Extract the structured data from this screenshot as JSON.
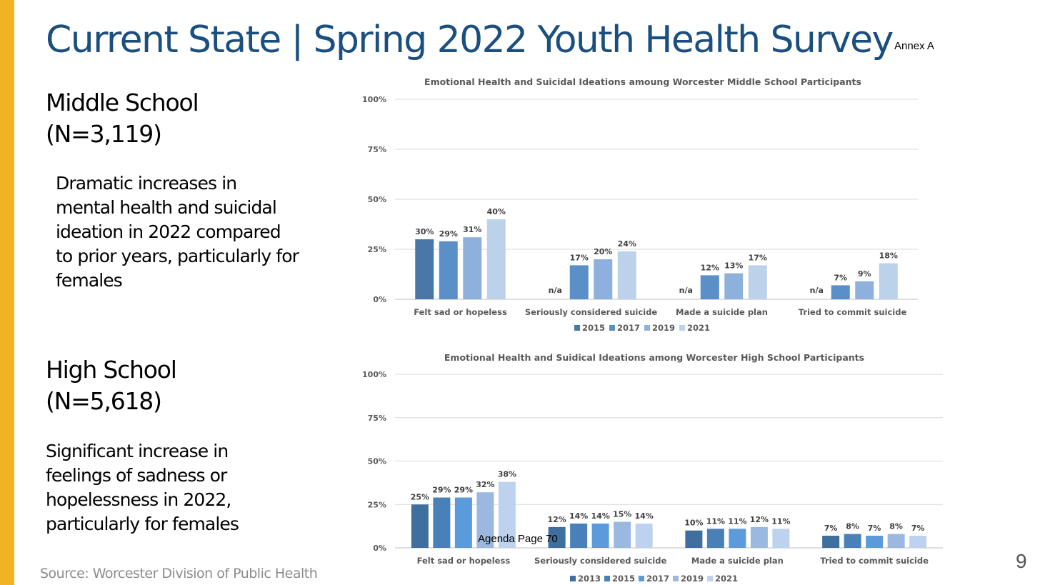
{
  "slide": {
    "title": "Current State | Spring 2022 Youth Health Survey",
    "annex": "Annex A",
    "source": "Source: Worcester Division of Public Health",
    "page_number": "9",
    "agenda_note": "Agenda Page 70",
    "accent_color": "#f0b323",
    "title_color": "#1a4f7f"
  },
  "middle_school": {
    "heading_line1": "Middle School",
    "heading_line2": "(N=3,119)",
    "text": "Dramatic increases in mental health and suicidal ideation in 2022 compared to  prior years, particularly for females"
  },
  "high_school": {
    "heading_line1": "High School",
    "heading_line2": "(N=5,618)",
    "text": "Significant increase in feelings of sadness or hopelessness in 2022, particularly for females"
  },
  "chart_data": [
    {
      "type": "bar",
      "title": "Emotional Health and Suicidal Ideations amoung Worcester Middle School Participants",
      "categories": [
        "Felt sad or hopeless",
        "Seriously considered suicide",
        "Made a suicide plan",
        "Tried to commit suicide"
      ],
      "series": [
        {
          "name": "2015",
          "color": "#4a77a8",
          "values": [
            30,
            null,
            null,
            null
          ],
          "labels": [
            "30%",
            "n/a",
            "n/a",
            "n/a"
          ]
        },
        {
          "name": "2017",
          "color": "#5b8fc8",
          "values": [
            29,
            17,
            12,
            7
          ],
          "labels": [
            "29%",
            "17%",
            "12%",
            "7%"
          ]
        },
        {
          "name": "2019",
          "color": "#8db1dc",
          "values": [
            31,
            20,
            13,
            9
          ],
          "labels": [
            "31%",
            "20%",
            "13%",
            "9%"
          ]
        },
        {
          "name": "2021",
          "color": "#bcd1ea",
          "values": [
            40,
            24,
            17,
            18
          ],
          "labels": [
            "40%",
            "24%",
            "17%",
            "18%"
          ]
        }
      ],
      "y_ticks": [
        "0%",
        "25%",
        "50%",
        "75%",
        "100%"
      ],
      "ylim": [
        0,
        100
      ],
      "grid": true,
      "legend": "bottom"
    },
    {
      "type": "bar",
      "title": "Emotional Health and Suidical Ideations among Worcester High School Participants",
      "categories": [
        "Felt sad or hopeless",
        "Seriously considered suicide",
        "Made a suicide plan",
        "Tried to commit suicide"
      ],
      "series": [
        {
          "name": "2013",
          "color": "#3f6f9e",
          "values": [
            25,
            12,
            10,
            7
          ],
          "labels": [
            "25%",
            "12%",
            "10%",
            "7%"
          ]
        },
        {
          "name": "2015",
          "color": "#4a80b8",
          "values": [
            29,
            14,
            11,
            8
          ],
          "labels": [
            "29%",
            "14%",
            "11%",
            "8%"
          ]
        },
        {
          "name": "2017",
          "color": "#5b9bdc",
          "values": [
            29,
            14,
            11,
            7
          ],
          "labels": [
            "29%",
            "14%",
            "11%",
            "7%"
          ]
        },
        {
          "name": "2019",
          "color": "#9bb8e0",
          "values": [
            32,
            15,
            12,
            8
          ],
          "labels": [
            "32%",
            "15%",
            "12%",
            "8%"
          ]
        },
        {
          "name": "2021",
          "color": "#bcd2ee",
          "values": [
            38,
            14,
            11,
            7
          ],
          "labels": [
            "38%",
            "14%",
            "11%",
            "7%"
          ]
        }
      ],
      "y_ticks": [
        "0%",
        "25%",
        "50%",
        "75%",
        "100%"
      ],
      "ylim": [
        0,
        100
      ],
      "grid": true,
      "legend": "bottom"
    }
  ]
}
